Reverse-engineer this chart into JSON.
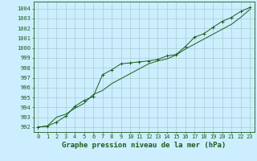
{
  "title": "Graphe pression niveau de la mer (hPa)",
  "background_color": "#cceeff",
  "grid_color": "#aacccc",
  "line_color": "#1a5c1a",
  "marker_color": "#1a5c1a",
  "xlim": [
    -0.5,
    23.5
  ],
  "ylim": [
    991.5,
    1004.7
  ],
  "xticks": [
    0,
    1,
    2,
    3,
    4,
    5,
    6,
    7,
    8,
    9,
    10,
    11,
    12,
    13,
    14,
    15,
    16,
    17,
    18,
    19,
    20,
    21,
    22,
    23
  ],
  "yticks": [
    992,
    993,
    994,
    995,
    996,
    997,
    998,
    999,
    1000,
    1001,
    1002,
    1003,
    1004
  ],
  "series1_x": [
    0,
    1,
    2,
    3,
    4,
    5,
    6,
    7,
    8,
    9,
    10,
    11,
    12,
    13,
    14,
    15,
    16,
    17,
    18,
    19,
    20,
    21,
    22,
    23
  ],
  "series1_y": [
    992.0,
    992.1,
    992.5,
    993.1,
    994.1,
    994.7,
    995.1,
    997.3,
    997.8,
    998.4,
    998.5,
    998.6,
    998.7,
    998.85,
    999.2,
    999.35,
    1000.15,
    1001.1,
    1001.45,
    1002.1,
    1002.7,
    1003.1,
    1003.7,
    1004.1
  ],
  "series2_x": [
    0,
    1,
    2,
    3,
    4,
    5,
    6,
    7,
    8,
    9,
    10,
    11,
    12,
    13,
    14,
    15,
    16,
    17,
    18,
    19,
    20,
    21,
    22,
    23
  ],
  "series2_y": [
    992.0,
    992.1,
    993.0,
    993.3,
    993.9,
    994.4,
    995.3,
    995.7,
    996.4,
    996.9,
    997.4,
    997.9,
    998.4,
    998.7,
    998.9,
    999.3,
    999.9,
    1000.4,
    1000.9,
    1001.4,
    1001.9,
    1002.4,
    1003.1,
    1003.9
  ],
  "title_fontsize": 6.5,
  "tick_fontsize": 5.0,
  "title_color": "#1a5c1a"
}
